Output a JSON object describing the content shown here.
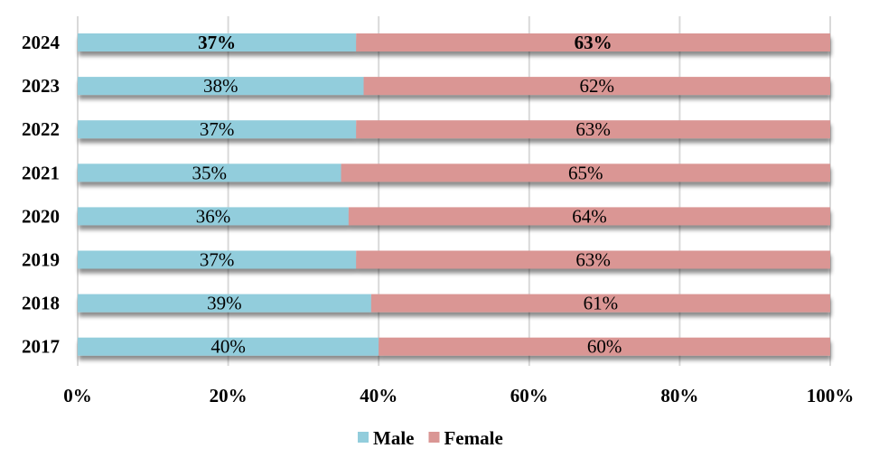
{
  "chart_data": {
    "type": "bar",
    "orientation": "horizontal",
    "stacked": "percent",
    "title": "",
    "xlabel": "",
    "ylabel": "",
    "xlim": [
      0,
      100
    ],
    "xticks": [
      "0%",
      "20%",
      "40%",
      "60%",
      "80%",
      "100%"
    ],
    "grid": true,
    "legend_position": "bottom",
    "categories": [
      "2024",
      "2023",
      "2022",
      "2021",
      "2020",
      "2019",
      "2018",
      "2017"
    ],
    "series": [
      {
        "name": "Male",
        "color": "#92CDDC",
        "values": [
          37,
          38,
          37,
          35,
          36,
          37,
          39,
          40
        ],
        "labels": [
          "37%",
          "38%",
          "37%",
          "35%",
          "36%",
          "37%",
          "39%",
          "40%"
        ]
      },
      {
        "name": "Female",
        "color": "#DA9694",
        "values": [
          63,
          62,
          63,
          65,
          64,
          63,
          61,
          60
        ],
        "labels": [
          "63%",
          "62%",
          "63%",
          "65%",
          "64%",
          "63%",
          "61%",
          "60%"
        ]
      }
    ],
    "bold_category": "2024"
  }
}
